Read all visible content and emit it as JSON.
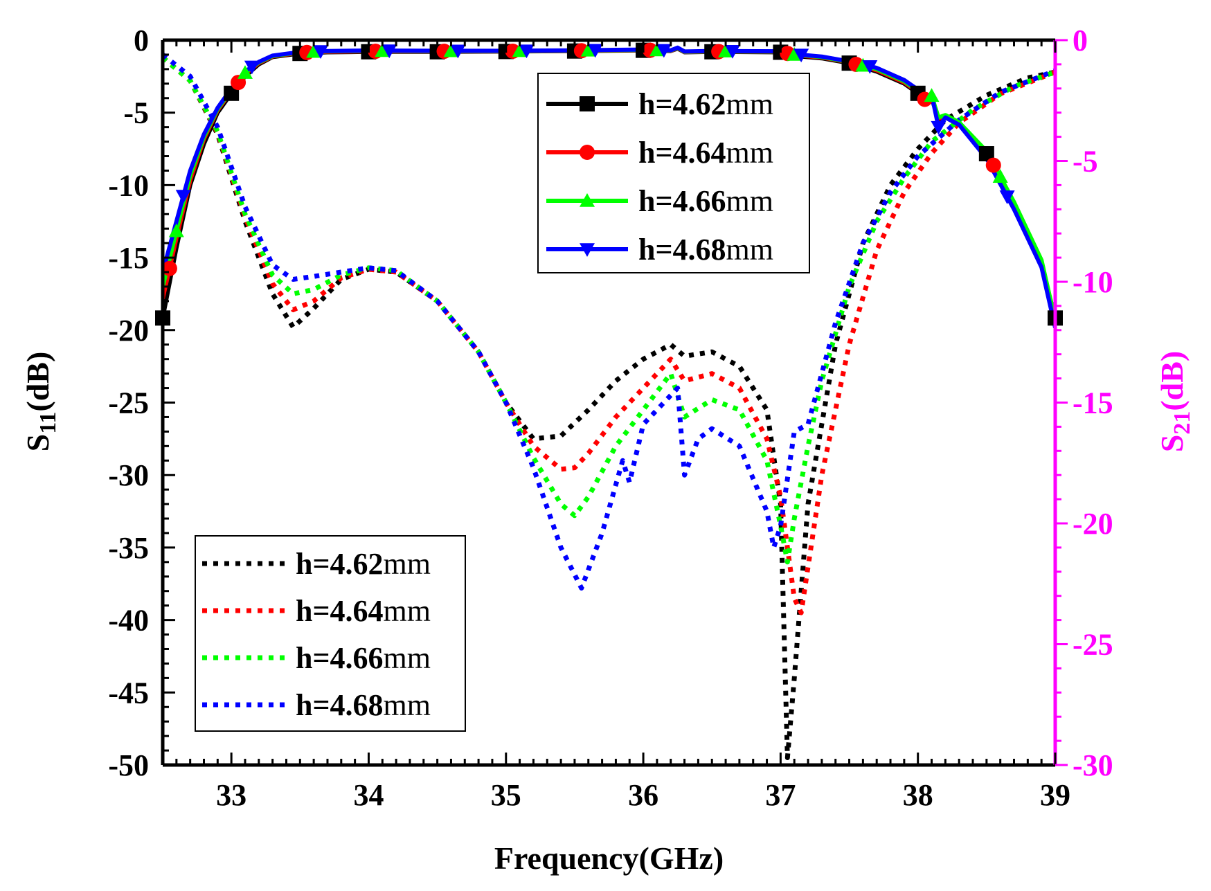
{
  "chart_data": {
    "type": "line",
    "xlabel": "Frequency(GHz)",
    "ylabel_left": {
      "base": "S",
      "sub": "11",
      "suffix": "(dB)"
    },
    "ylabel_right": {
      "base": "S",
      "sub": "21",
      "suffix": "(dB)"
    },
    "xlim": [
      32.5,
      39
    ],
    "ylim_left": [
      -50,
      0
    ],
    "ylim_right": [
      -30,
      0
    ],
    "x_ticks": [
      33,
      34,
      35,
      36,
      37,
      38,
      39
    ],
    "y_ticks_left": [
      0,
      -5,
      -10,
      -15,
      -20,
      -25,
      -30,
      -35,
      -40,
      -45,
      -50
    ],
    "y_ticks_right": [
      0,
      -5,
      -10,
      -15,
      -20,
      -25,
      -30
    ],
    "right_axis_color": "#ff00ff",
    "s21_legend_title": "",
    "s21_legend": [
      {
        "prefix": "h=4.62",
        "unit": "mm",
        "color": "#000000",
        "marker": "square"
      },
      {
        "prefix": "h=4.64",
        "unit": "mm",
        "color": "#ff0000",
        "marker": "circle"
      },
      {
        "prefix": "h=4.66",
        "unit": "mm",
        "color": "#00ff00",
        "marker": "triangle-up"
      },
      {
        "prefix": "h=4.68",
        "unit": "mm",
        "color": "#0000ff",
        "marker": "triangle-down"
      }
    ],
    "s11_legend": [
      {
        "prefix": "h=4.62",
        "unit": "mm",
        "color": "#000000"
      },
      {
        "prefix": "h=4.64",
        "unit": "mm",
        "color": "#ff0000"
      },
      {
        "prefix": "h=4.66",
        "unit": "mm",
        "color": "#00ff00"
      },
      {
        "prefix": "h=4.68",
        "unit": "mm",
        "color": "#0000ff"
      }
    ],
    "series_s21": [
      {
        "name": "h=4.62mm",
        "color": "#000000",
        "marker": "square",
        "x": [
          32.5,
          32.6,
          32.7,
          32.8,
          32.9,
          33.0,
          33.1,
          33.2,
          33.3,
          33.5,
          33.7,
          34.0,
          34.5,
          35.0,
          35.5,
          36.0,
          36.2,
          36.25,
          36.3,
          36.5,
          37.0,
          37.1,
          37.3,
          37.5,
          37.7,
          37.9,
          38.0,
          38.05,
          38.1,
          38.15,
          38.2,
          38.3,
          38.5,
          38.7,
          38.9,
          39.0
        ],
        "y": [
          -11.5,
          -8.6,
          -6.0,
          -4.3,
          -3.0,
          -2.2,
          -1.5,
          -1.0,
          -0.7,
          -0.55,
          -0.5,
          -0.48,
          -0.48,
          -0.47,
          -0.45,
          -0.42,
          -0.45,
          -0.35,
          -0.5,
          -0.48,
          -0.5,
          -0.65,
          -0.75,
          -0.95,
          -1.3,
          -1.8,
          -2.2,
          -2.5,
          -2.4,
          -3.3,
          -3.2,
          -3.5,
          -4.7,
          -6.8,
          -9.3,
          -11.5
        ]
      },
      {
        "name": "h=4.64mm",
        "color": "#ff0000",
        "marker": "circle",
        "x": [
          32.5,
          32.6,
          32.7,
          32.8,
          32.9,
          33.0,
          33.1,
          33.2,
          33.3,
          33.5,
          33.7,
          34.0,
          34.5,
          35.0,
          35.5,
          36.0,
          36.2,
          36.25,
          36.3,
          36.5,
          37.0,
          37.1,
          37.3,
          37.5,
          37.7,
          37.9,
          38.0,
          38.05,
          38.1,
          38.15,
          38.2,
          38.3,
          38.5,
          38.7,
          38.9,
          39.0
        ],
        "y": [
          -10.7,
          -8.2,
          -5.8,
          -4.1,
          -2.9,
          -2.1,
          -1.4,
          -0.95,
          -0.68,
          -0.52,
          -0.48,
          -0.46,
          -0.46,
          -0.46,
          -0.44,
          -0.41,
          -0.44,
          -0.33,
          -0.49,
          -0.47,
          -0.48,
          -0.62,
          -0.72,
          -0.92,
          -1.25,
          -1.75,
          -2.15,
          -2.45,
          -2.35,
          -3.25,
          -3.15,
          -3.45,
          -4.65,
          -6.75,
          -9.2,
          -11.7
        ]
      },
      {
        "name": "h=4.66mm",
        "color": "#00ff00",
        "marker": "triangle-up",
        "x": [
          32.5,
          32.6,
          32.7,
          32.8,
          32.9,
          33.0,
          33.1,
          33.2,
          33.3,
          33.5,
          33.7,
          34.0,
          34.5,
          35.0,
          35.5,
          36.0,
          36.2,
          36.25,
          36.3,
          36.5,
          37.0,
          37.1,
          37.3,
          37.5,
          37.7,
          37.9,
          38.0,
          38.05,
          38.1,
          38.15,
          38.2,
          38.3,
          38.5,
          38.7,
          38.9,
          39.0
        ],
        "y": [
          -10.2,
          -7.9,
          -5.6,
          -4.0,
          -2.85,
          -2.05,
          -1.35,
          -0.92,
          -0.66,
          -0.5,
          -0.46,
          -0.44,
          -0.45,
          -0.45,
          -0.43,
          -0.4,
          -0.43,
          -0.32,
          -0.48,
          -0.46,
          -0.47,
          -0.6,
          -0.7,
          -0.9,
          -1.2,
          -1.7,
          -2.1,
          -2.4,
          -2.3,
          -3.2,
          -3.1,
          -3.4,
          -4.6,
          -6.7,
          -9.1,
          -11.6
        ]
      },
      {
        "name": "h=4.68mm",
        "color": "#0000ff",
        "marker": "triangle-down",
        "x": [
          32.5,
          32.6,
          32.7,
          32.8,
          32.9,
          33.0,
          33.1,
          33.2,
          33.3,
          33.5,
          33.7,
          34.0,
          34.5,
          35.0,
          35.5,
          36.0,
          36.2,
          36.25,
          36.3,
          36.5,
          37.0,
          37.1,
          37.3,
          37.5,
          37.7,
          37.9,
          38.0,
          38.05,
          38.1,
          38.15,
          38.2,
          38.3,
          38.5,
          38.7,
          38.9,
          39.0
        ],
        "y": [
          -9.6,
          -7.5,
          -5.4,
          -3.9,
          -2.8,
          -2.0,
          -1.3,
          -0.9,
          -0.64,
          -0.49,
          -0.45,
          -0.43,
          -0.44,
          -0.44,
          -0.42,
          -0.39,
          -0.42,
          -0.31,
          -0.47,
          -0.45,
          -0.46,
          -0.58,
          -0.68,
          -0.88,
          -1.15,
          -1.65,
          -2.05,
          -2.35,
          -2.25,
          -3.6,
          -3.2,
          -3.5,
          -4.9,
          -7.0,
          -9.4,
          -11.9
        ]
      }
    ],
    "series_s11": [
      {
        "name": "h=4.62mm",
        "color": "#000000",
        "x": [
          32.5,
          32.7,
          32.9,
          33.1,
          33.3,
          33.45,
          33.6,
          33.8,
          34.0,
          34.2,
          34.5,
          34.8,
          35.0,
          35.2,
          35.4,
          35.6,
          35.8,
          36.0,
          36.2,
          36.3,
          36.5,
          36.7,
          36.9,
          37.0,
          37.05,
          37.1,
          37.2,
          37.4,
          37.6,
          37.8,
          38.0,
          38.2,
          38.5,
          38.8,
          39.0
        ],
        "y": [
          -1.2,
          -2.8,
          -6.5,
          -12.5,
          -17.5,
          -19.8,
          -18.5,
          -16.5,
          -15.8,
          -16.0,
          -18.0,
          -21.5,
          -25.0,
          -27.5,
          -27.3,
          -25.5,
          -23.5,
          -22.0,
          -21.0,
          -21.8,
          -21.5,
          -22.5,
          -25.5,
          -32.0,
          -49.5,
          -44.0,
          -32.0,
          -21.0,
          -14.0,
          -10.0,
          -7.5,
          -5.5,
          -3.8,
          -2.6,
          -2.2
        ]
      },
      {
        "name": "h=4.64mm",
        "color": "#ff0000",
        "x": [
          32.5,
          32.7,
          32.9,
          33.1,
          33.3,
          33.45,
          33.6,
          33.8,
          34.0,
          34.2,
          34.5,
          34.8,
          35.0,
          35.2,
          35.4,
          35.5,
          35.6,
          35.8,
          36.0,
          36.2,
          36.3,
          36.5,
          36.7,
          36.9,
          37.0,
          37.1,
          37.15,
          37.3,
          37.5,
          37.7,
          37.9,
          38.1,
          38.3,
          38.6,
          39.0
        ],
        "y": [
          -1.2,
          -2.8,
          -6.4,
          -12.2,
          -16.8,
          -18.6,
          -18.0,
          -16.4,
          -15.8,
          -16.0,
          -18.0,
          -21.5,
          -25.0,
          -28.0,
          -29.6,
          -29.5,
          -28.5,
          -26.0,
          -24.0,
          -22.0,
          -23.5,
          -23.0,
          -24.0,
          -27.5,
          -31.5,
          -38.5,
          -39.5,
          -30.0,
          -21.0,
          -14.5,
          -10.5,
          -7.8,
          -5.7,
          -3.7,
          -2.2
        ]
      },
      {
        "name": "h=4.66mm",
        "color": "#00ff00",
        "x": [
          32.5,
          32.7,
          32.9,
          33.1,
          33.3,
          33.45,
          33.6,
          33.8,
          34.0,
          34.2,
          34.5,
          34.8,
          35.0,
          35.2,
          35.4,
          35.5,
          35.6,
          35.8,
          36.0,
          36.2,
          36.3,
          36.5,
          36.7,
          36.9,
          37.0,
          37.05,
          37.1,
          37.2,
          37.3,
          37.5,
          37.7,
          37.9,
          38.1,
          38.4,
          38.7,
          39.0
        ],
        "y": [
          -1.2,
          -2.8,
          -6.3,
          -12.0,
          -16.2,
          -17.5,
          -17.2,
          -16.2,
          -15.7,
          -15.9,
          -18.0,
          -21.5,
          -25.0,
          -28.8,
          -32.0,
          -32.8,
          -31.5,
          -28.0,
          -25.5,
          -23.0,
          -26.0,
          -24.8,
          -25.5,
          -29.0,
          -33.5,
          -36.0,
          -33.0,
          -28.0,
          -23.5,
          -17.0,
          -12.5,
          -9.5,
          -7.0,
          -4.8,
          -3.2,
          -2.2
        ]
      },
      {
        "name": "h=4.68mm",
        "color": "#0000ff",
        "x": [
          32.5,
          32.7,
          32.9,
          33.1,
          33.3,
          33.45,
          33.6,
          33.8,
          34.0,
          34.2,
          34.5,
          34.8,
          35.0,
          35.2,
          35.4,
          35.55,
          35.7,
          35.85,
          35.9,
          36.0,
          36.2,
          36.25,
          36.3,
          36.4,
          36.5,
          36.7,
          36.9,
          36.95,
          37.0,
          37.1,
          37.2,
          37.4,
          37.6,
          37.8,
          38.0,
          38.3,
          38.6,
          39.0
        ],
        "y": [
          -1.0,
          -2.5,
          -6.0,
          -11.5,
          -15.5,
          -16.5,
          -16.3,
          -16.0,
          -15.7,
          -15.9,
          -18.0,
          -21.5,
          -25.0,
          -29.5,
          -35.0,
          -37.8,
          -34.0,
          -29.0,
          -30.5,
          -26.5,
          -24.5,
          -24.0,
          -30.0,
          -27.5,
          -26.8,
          -28.0,
          -32.5,
          -35.0,
          -33.5,
          -27.0,
          -26.5,
          -19.5,
          -14.0,
          -10.5,
          -8.0,
          -5.5,
          -3.6,
          -2.1
        ]
      }
    ]
  }
}
